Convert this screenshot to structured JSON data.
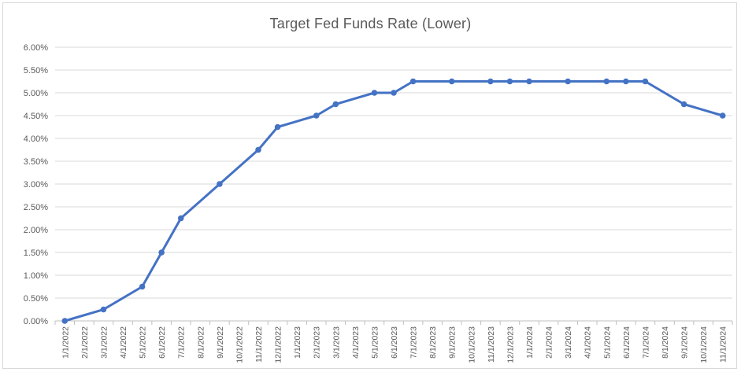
{
  "chart_data": {
    "type": "line",
    "title": "Target Fed Funds Rate (Lower)",
    "xlabel": "",
    "ylabel": "",
    "ylim": [
      0,
      6
    ],
    "y_tick_labels": [
      "0.00%",
      "0.50%",
      "1.00%",
      "1.50%",
      "2.00%",
      "2.50%",
      "3.00%",
      "3.50%",
      "4.00%",
      "4.50%",
      "5.00%",
      "5.50%",
      "6.00%"
    ],
    "categories": [
      "1/1/2022",
      "2/1/2022",
      "3/1/2022",
      "4/1/2022",
      "5/1/2022",
      "6/1/2022",
      "7/1/2022",
      "8/1/2022",
      "9/1/2022",
      "10/1/2022",
      "11/1/2022",
      "12/1/2022",
      "1/1/2023",
      "2/1/2023",
      "3/1/2023",
      "4/1/2023",
      "5/1/2023",
      "6/1/2023",
      "7/1/2023",
      "8/1/2023",
      "9/1/2023",
      "10/1/2023",
      "11/1/2023",
      "12/1/2023",
      "1/1/2024",
      "2/1/2024",
      "3/1/2024",
      "4/1/2024",
      "5/1/2024",
      "6/1/2024",
      "7/1/2024",
      "8/1/2024",
      "9/1/2024",
      "10/1/2024",
      "11/1/2024"
    ],
    "points": [
      {
        "x": "1/1/2022",
        "y": 0.0
      },
      {
        "x": "3/1/2022",
        "y": 0.25
      },
      {
        "x": "5/1/2022",
        "y": 0.75
      },
      {
        "x": "6/1/2022",
        "y": 1.5
      },
      {
        "x": "7/1/2022",
        "y": 2.25
      },
      {
        "x": "9/1/2022",
        "y": 3.0
      },
      {
        "x": "11/1/2022",
        "y": 3.75
      },
      {
        "x": "12/1/2022",
        "y": 4.25
      },
      {
        "x": "2/1/2023",
        "y": 4.5
      },
      {
        "x": "3/1/2023",
        "y": 4.75
      },
      {
        "x": "5/1/2023",
        "y": 5.0
      },
      {
        "x": "6/1/2023",
        "y": 5.0
      },
      {
        "x": "7/1/2023",
        "y": 5.25
      },
      {
        "x": "9/1/2023",
        "y": 5.25
      },
      {
        "x": "11/1/2023",
        "y": 5.25
      },
      {
        "x": "12/1/2023",
        "y": 5.25
      },
      {
        "x": "1/1/2024",
        "y": 5.25
      },
      {
        "x": "3/1/2024",
        "y": 5.25
      },
      {
        "x": "5/1/2024",
        "y": 5.25
      },
      {
        "x": "6/1/2024",
        "y": 5.25
      },
      {
        "x": "7/1/2024",
        "y": 5.25
      },
      {
        "x": "9/1/2024",
        "y": 4.75
      },
      {
        "x": "11/1/2024",
        "y": 4.5
      }
    ],
    "grid": true,
    "legend": "none",
    "colors": {
      "line": "#4472c4",
      "grid": "#d9d9d9",
      "text": "#595959"
    }
  }
}
